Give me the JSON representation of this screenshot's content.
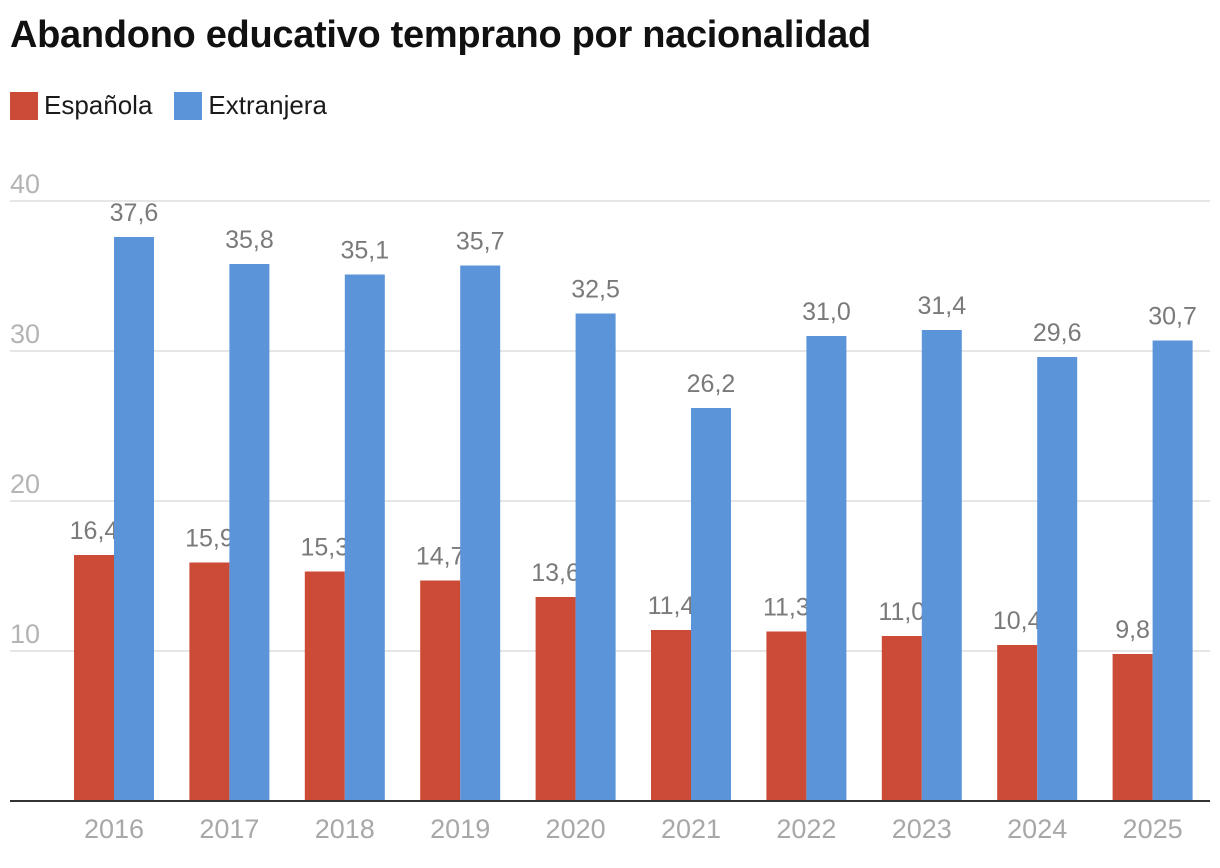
{
  "chart_data": {
    "type": "bar",
    "title": "Abandono educativo temprano por nacionalidad",
    "categories": [
      "2016",
      "2017",
      "2018",
      "2019",
      "2020",
      "2021",
      "2022",
      "2023",
      "2024",
      "2025"
    ],
    "series": [
      {
        "name": "Española",
        "color": "#cc4b37",
        "values": [
          16.4,
          15.9,
          15.3,
          14.7,
          13.6,
          11.4,
          11.3,
          11.0,
          10.4,
          9.8
        ],
        "labels": [
          "16,4",
          "15,9",
          "15,3",
          "14,7",
          "13,6",
          "11,4",
          "11,3",
          "11,0",
          "10,4",
          "9,8"
        ]
      },
      {
        "name": "Extranjera",
        "color": "#5b94d9",
        "values": [
          37.6,
          35.8,
          35.1,
          35.7,
          32.5,
          26.2,
          31.0,
          31.4,
          29.6,
          30.7
        ],
        "labels": [
          "37,6",
          "35,8",
          "35,1",
          "35,7",
          "32,5",
          "26,2",
          "31,0",
          "31,4",
          "29,6",
          "30,7"
        ]
      }
    ],
    "yticks": [
      10,
      20,
      30,
      40
    ],
    "ylim": [
      0,
      40
    ],
    "grid": true,
    "legend_position": "top-left",
    "xlabel": "",
    "ylabel": ""
  }
}
